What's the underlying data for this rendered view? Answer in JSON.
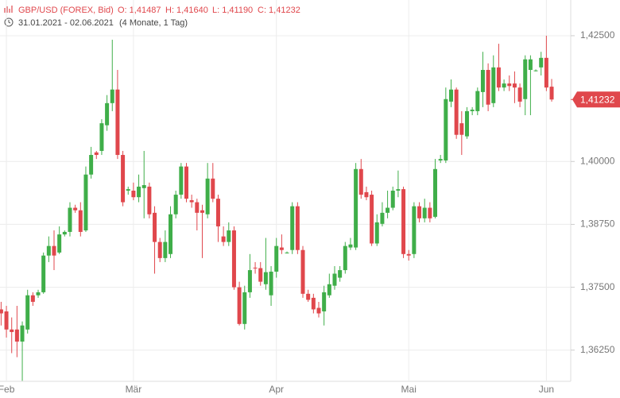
{
  "header": {
    "symbol": "GBP/USD (FOREX, Bid)",
    "open": "O: 1,41487",
    "high": "H: 1,41640",
    "low": "L: 1,41190",
    "close": "C: 1,41232",
    "range": "31.01.2021 - 02.06.2021",
    "period": "(4 Monate, 1 Tag)"
  },
  "chart_data": {
    "type": "candlestick",
    "up_color": "#3fae49",
    "down_color": "#e0474c",
    "grid": true,
    "ylim": [
      1.3563,
      1.4321
    ],
    "yticks": [
      {
        "value": 1.425,
        "label": "1,42500"
      },
      {
        "value": 1.4,
        "label": "1,40000"
      },
      {
        "value": 1.3875,
        "label": "1,38750"
      },
      {
        "value": 1.375,
        "label": "1,37500"
      },
      {
        "value": 1.3625,
        "label": "1,36250"
      }
    ],
    "last_value": 1.41232,
    "last_label": "1,41232",
    "categories": [
      null,
      "Feb",
      null,
      null,
      null,
      null,
      null,
      null,
      null,
      null,
      null,
      null,
      null,
      null,
      null,
      null,
      null,
      null,
      null,
      null,
      null,
      null,
      null,
      null,
      null,
      "Mär",
      null,
      null,
      null,
      null,
      null,
      null,
      null,
      null,
      null,
      null,
      null,
      null,
      null,
      null,
      null,
      null,
      null,
      null,
      null,
      null,
      null,
      null,
      null,
      null,
      null,
      null,
      "Apr",
      null,
      null,
      null,
      null,
      null,
      null,
      null,
      null,
      null,
      null,
      null,
      null,
      null,
      null,
      null,
      null,
      null,
      null,
      null,
      null,
      null,
      null,
      null,
      null,
      "Mai",
      null,
      null,
      null,
      null,
      null,
      null,
      null,
      null,
      null,
      null,
      null,
      null,
      null,
      null,
      null,
      null,
      null,
      null,
      null,
      null,
      null,
      null,
      null,
      null,
      null,
      "Jun",
      null
    ],
    "ohlc": [
      [
        1.3706,
        1.3721,
        1.3674,
        1.3698
      ],
      [
        1.3702,
        1.3713,
        1.365,
        1.3666
      ],
      [
        1.3666,
        1.369,
        1.3619,
        1.3661
      ],
      [
        1.3666,
        1.3713,
        1.3611,
        1.3642
      ],
      [
        1.3642,
        1.3682,
        1.3564,
        1.3674
      ],
      [
        1.3666,
        1.3745,
        1.3658,
        1.3734
      ],
      [
        1.3734,
        1.374,
        1.3713,
        1.3721
      ],
      [
        1.3734,
        1.3745,
        1.3729,
        1.374
      ],
      [
        1.374,
        1.3819,
        1.3737,
        1.3813
      ],
      [
        1.3813,
        1.3851,
        1.38,
        1.3832
      ],
      [
        1.3832,
        1.3863,
        1.3784,
        1.3813
      ],
      [
        1.3819,
        1.3871,
        1.3816,
        1.3855
      ],
      [
        1.3855,
        1.3863,
        1.3851,
        1.386
      ],
      [
        1.386,
        1.3919,
        1.3851,
        1.3908
      ],
      [
        1.3908,
        1.3914,
        1.3898,
        1.3903
      ],
      [
        1.3903,
        1.3919,
        1.3851,
        1.386
      ],
      [
        1.3863,
        1.399,
        1.386,
        1.3974
      ],
      [
        1.3974,
        1.4029,
        1.3966,
        1.4013
      ],
      [
        1.4018,
        1.4021,
        1.4005,
        1.4013
      ],
      [
        1.4021,
        1.4084,
        1.4013,
        1.4076
      ],
      [
        1.4072,
        1.4132,
        1.4061,
        1.4116
      ],
      [
        1.4116,
        1.4242,
        1.41,
        1.4143
      ],
      [
        1.4143,
        1.4182,
        1.4005,
        1.4013
      ],
      [
        1.4013,
        1.4021,
        1.3911,
        1.3919
      ],
      [
        1.3942,
        1.395,
        1.3934,
        1.3945
      ],
      [
        1.3942,
        1.3958,
        1.3923,
        1.3929
      ],
      [
        1.3929,
        1.3974,
        1.3919,
        1.395
      ],
      [
        1.3947,
        1.4021,
        1.3887,
        1.3953
      ],
      [
        1.395,
        1.3958,
        1.3887,
        1.3895
      ],
      [
        1.3898,
        1.3911,
        1.3777,
        1.384
      ],
      [
        1.384,
        1.3848,
        1.38,
        1.3808
      ],
      [
        1.3808,
        1.3863,
        1.38,
        1.384
      ],
      [
        1.3816,
        1.3911,
        1.3808,
        1.3895
      ],
      [
        1.3895,
        1.3942,
        1.3887,
        1.3934
      ],
      [
        1.3934,
        1.3997,
        1.3926,
        1.399
      ],
      [
        1.399,
        1.3997,
        1.3919,
        1.3926
      ],
      [
        1.3923,
        1.3934,
        1.3908,
        1.3919
      ],
      [
        1.3919,
        1.3926,
        1.3863,
        1.3898
      ],
      [
        1.3903,
        1.3914,
        1.3808,
        1.3898
      ],
      [
        1.3895,
        1.3997,
        1.3887,
        1.3966
      ],
      [
        1.3966,
        1.3997,
        1.3919,
        1.3926
      ],
      [
        1.3926,
        1.3934,
        1.384,
        1.3871
      ],
      [
        1.3851,
        1.3871,
        1.3832,
        1.384
      ],
      [
        1.384,
        1.3879,
        1.3832,
        1.3863
      ],
      [
        1.3863,
        1.3871,
        1.3745,
        1.375
      ],
      [
        1.375,
        1.3761,
        1.3674,
        1.3677
      ],
      [
        1.3677,
        1.3753,
        1.3666,
        1.374
      ],
      [
        1.374,
        1.3816,
        1.3729,
        1.3784
      ],
      [
        1.3789,
        1.38,
        1.3777,
        1.3788
      ],
      [
        1.3788,
        1.38,
        1.3753,
        1.3761
      ],
      [
        1.3756,
        1.3848,
        1.3745,
        1.378
      ],
      [
        1.3734,
        1.3792,
        1.3713,
        1.3781
      ],
      [
        1.3781,
        1.3848,
        1.3769,
        1.3832
      ],
      [
        1.3829,
        1.3855,
        1.3816,
        1.3824
      ],
      [
        1.3819,
        1.3821,
        1.3817,
        1.3819
      ],
      [
        1.3824,
        1.3919,
        1.3816,
        1.3911
      ],
      [
        1.3911,
        1.3919,
        1.3816,
        1.3824
      ],
      [
        1.3824,
        1.3832,
        1.3729,
        1.3737
      ],
      [
        1.3737,
        1.3745,
        1.3721,
        1.3725
      ],
      [
        1.3729,
        1.3737,
        1.3698,
        1.3706
      ],
      [
        1.3709,
        1.3721,
        1.369,
        1.3698
      ],
      [
        1.3702,
        1.3753,
        1.3674,
        1.374
      ],
      [
        1.3734,
        1.3777,
        1.3729,
        1.3756
      ],
      [
        1.3753,
        1.3792,
        1.3745,
        1.3777
      ],
      [
        1.3769,
        1.3792,
        1.3761,
        1.3784
      ],
      [
        1.3784,
        1.384,
        1.3777,
        1.3832
      ],
      [
        1.3829,
        1.3848,
        1.3824,
        1.3835
      ],
      [
        1.3829,
        1.3997,
        1.3824,
        1.3985
      ],
      [
        1.3985,
        1.4005,
        1.3926,
        1.3934
      ],
      [
        1.3939,
        1.395,
        1.3923,
        1.3929
      ],
      [
        1.3934,
        1.3942,
        1.3832,
        1.3837
      ],
      [
        1.3837,
        1.3895,
        1.3832,
        1.3879
      ],
      [
        1.3876,
        1.3919,
        1.3871,
        1.3898
      ],
      [
        1.3898,
        1.3942,
        1.3887,
        1.3908
      ],
      [
        1.3908,
        1.395,
        1.3903,
        1.3942
      ],
      [
        1.3942,
        1.3982,
        1.3929,
        1.3945
      ],
      [
        1.3945,
        1.395,
        1.3808,
        1.3816
      ],
      [
        1.3816,
        1.3824,
        1.3803,
        1.3813
      ],
      [
        1.3816,
        1.3919,
        1.3808,
        1.3911
      ],
      [
        1.3911,
        1.3919,
        1.3879,
        1.3887
      ],
      [
        1.3887,
        1.3926,
        1.3879,
        1.3908
      ],
      [
        1.3908,
        1.3919,
        1.3879,
        1.3887
      ],
      [
        1.389,
        1.4005,
        1.3887,
        1.3985
      ],
      [
        1.4002,
        1.4013,
        1.3997,
        1.4005
      ],
      [
        1.4002,
        1.4147,
        1.3997,
        1.4124
      ],
      [
        1.4119,
        1.4163,
        1.4108,
        1.4143
      ],
      [
        1.4143,
        1.4147,
        1.4045,
        1.4053
      ],
      [
        1.4076,
        1.41,
        1.4013,
        1.4053
      ],
      [
        1.405,
        1.4108,
        1.4045,
        1.41
      ],
      [
        1.41,
        1.4108,
        1.4092,
        1.4103
      ],
      [
        1.41,
        1.4147,
        1.4092,
        1.414
      ],
      [
        1.4138,
        1.4218,
        1.4108,
        1.4182
      ],
      [
        1.4182,
        1.4195,
        1.41,
        1.4113
      ],
      [
        1.4116,
        1.4211,
        1.4108,
        1.4187
      ],
      [
        1.4187,
        1.4234,
        1.414,
        1.4147
      ],
      [
        1.4147,
        1.4163,
        1.414,
        1.4155
      ],
      [
        1.4155,
        1.4171,
        1.414,
        1.415
      ],
      [
        1.4155,
        1.4179,
        1.4116,
        1.4147
      ],
      [
        1.4147,
        1.4155,
        1.4108,
        1.4119
      ],
      [
        1.4124,
        1.4211,
        1.4092,
        1.4203
      ],
      [
        1.4182,
        1.4211,
        1.4092,
        1.4203
      ],
      [
        1.4181,
        1.4183,
        1.4179,
        1.4181
      ],
      [
        1.4187,
        1.4218,
        1.4171,
        1.4206
      ],
      [
        1.4206,
        1.425,
        1.414,
        1.4147
      ],
      [
        1.41487,
        1.4164,
        1.4119,
        1.41232
      ]
    ]
  }
}
